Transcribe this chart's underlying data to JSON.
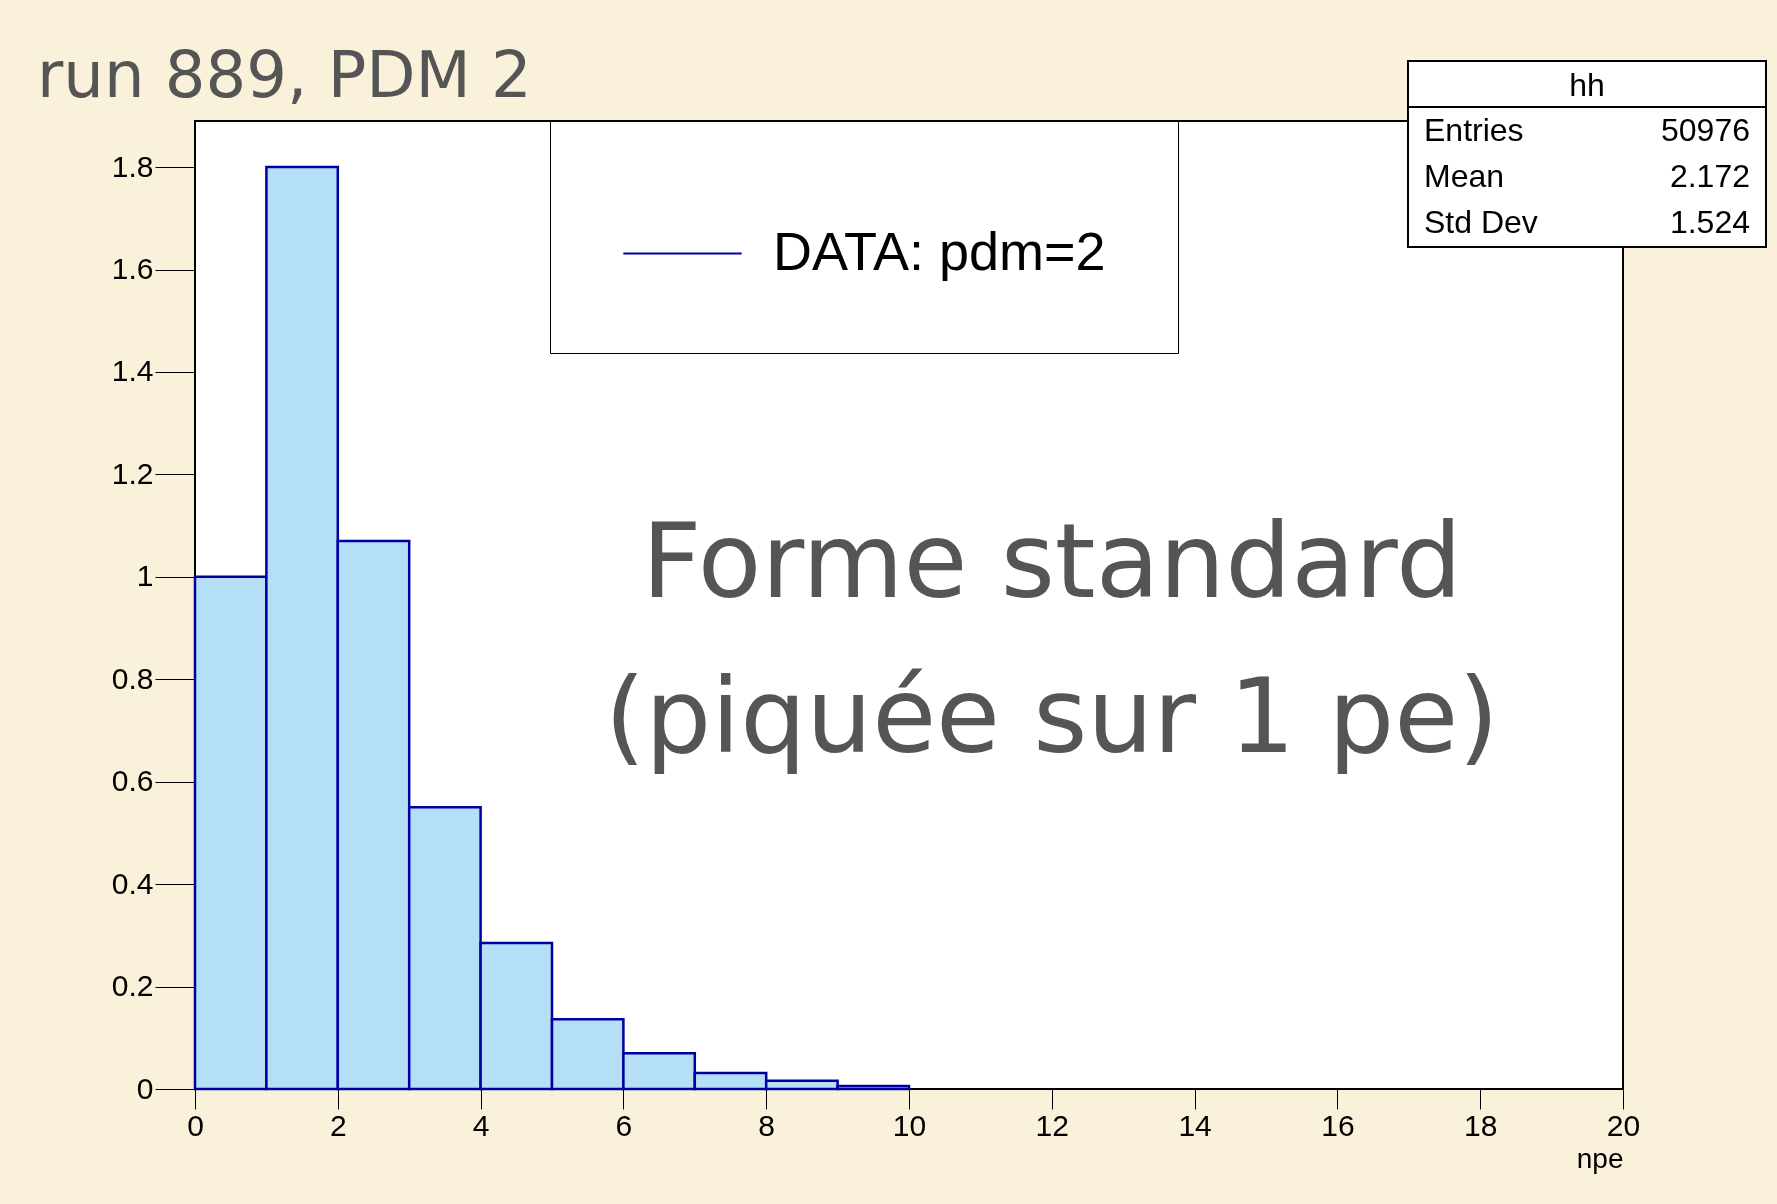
{
  "chart_data": {
    "type": "histogram",
    "title": "run 889, PDM 2",
    "xlabel": "npe",
    "bins": [
      0,
      1,
      2,
      3,
      4,
      5,
      6,
      7,
      8,
      9,
      10
    ],
    "series": [
      {
        "name": "DATA: pdm=2",
        "color": "#0000a0",
        "values": [
          1.0,
          1.8,
          1.07,
          0.55,
          0.285,
          0.136,
          0.07,
          0.031,
          0.016,
          0.006
        ]
      }
    ],
    "xlim": [
      0,
      20
    ],
    "xticks": [
      0,
      2,
      4,
      6,
      8,
      10,
      12,
      14,
      16,
      18,
      20
    ],
    "ylim": [
      0,
      1.89
    ],
    "yticks": [
      0,
      0.2,
      0.4,
      0.6,
      0.8,
      1,
      1.2,
      1.4,
      1.6,
      1.8
    ],
    "legend": "top",
    "grid": false,
    "annotations": [
      "Forme standard",
      "(piquée sur 1 pe)",
      "hh",
      "Entries",
      "50976",
      "Mean",
      "2.172",
      "Std Dev",
      "1.524"
    ]
  }
}
